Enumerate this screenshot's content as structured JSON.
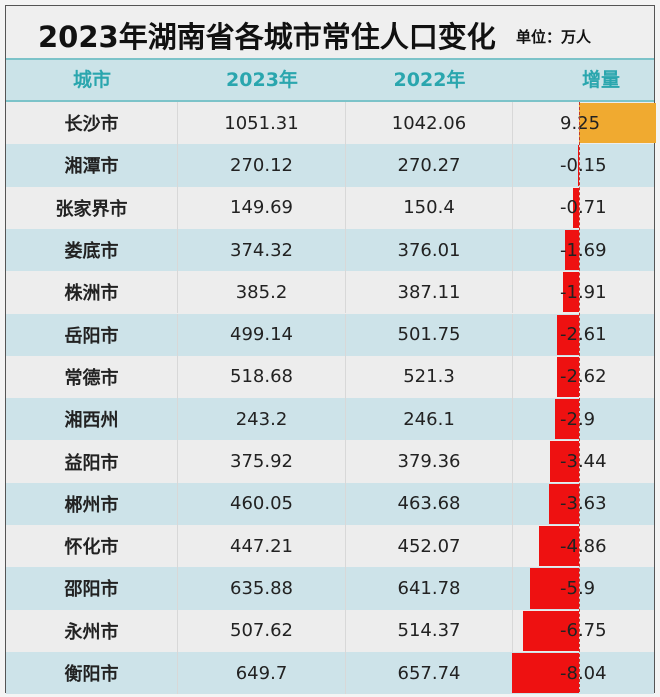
{
  "title": "2023年湖南省各城市常住人口变化",
  "unit": "单位：万人",
  "colors": {
    "header_bg": "#cbe3e8",
    "header_text": "#2aa6ae",
    "row_light": "#ededed",
    "row_blue": "#cde3e9",
    "positive_bar": "#f0aa30",
    "negative_bar": "#ee1111"
  },
  "chart_data": {
    "type": "table",
    "columns": [
      "城市",
      "2023年",
      "2022年",
      "增量"
    ],
    "rows": [
      {
        "city": "长沙市",
        "y2023": "1051.31",
        "y2022": "1042.06",
        "change": "9.25"
      },
      {
        "city": "湘潭市",
        "y2023": "270.12",
        "y2022": "270.27",
        "change": "-0.15"
      },
      {
        "city": "张家界市",
        "y2023": "149.69",
        "y2022": "150.4",
        "change": "-0.71"
      },
      {
        "city": "娄底市",
        "y2023": "374.32",
        "y2022": "376.01",
        "change": "-1.69"
      },
      {
        "city": "株洲市",
        "y2023": "385.2",
        "y2022": "387.11",
        "change": "-1.91"
      },
      {
        "city": "岳阳市",
        "y2023": "499.14",
        "y2022": "501.75",
        "change": "-2.61"
      },
      {
        "city": "常德市",
        "y2023": "518.68",
        "y2022": "521.3",
        "change": "-2.62"
      },
      {
        "city": "湘西州",
        "y2023": "243.2",
        "y2022": "246.1",
        "change": "-2.9"
      },
      {
        "city": "益阳市",
        "y2023": "375.92",
        "y2022": "379.36",
        "change": "-3.44"
      },
      {
        "city": "郴州市",
        "y2023": "460.05",
        "y2022": "463.68",
        "change": "-3.63"
      },
      {
        "city": "怀化市",
        "y2023": "447.21",
        "y2022": "452.07",
        "change": "-4.86"
      },
      {
        "city": "邵阳市",
        "y2023": "635.88",
        "y2022": "641.78",
        "change": "-5.9"
      },
      {
        "city": "永州市",
        "y2023": "507.62",
        "y2022": "514.37",
        "change": "-6.75"
      },
      {
        "city": "衡阳市",
        "y2023": "649.7",
        "y2022": "657.74",
        "change": "-8.04"
      }
    ],
    "data_bars": {
      "column": "增量",
      "range": [
        -8.04,
        9.25
      ]
    }
  }
}
